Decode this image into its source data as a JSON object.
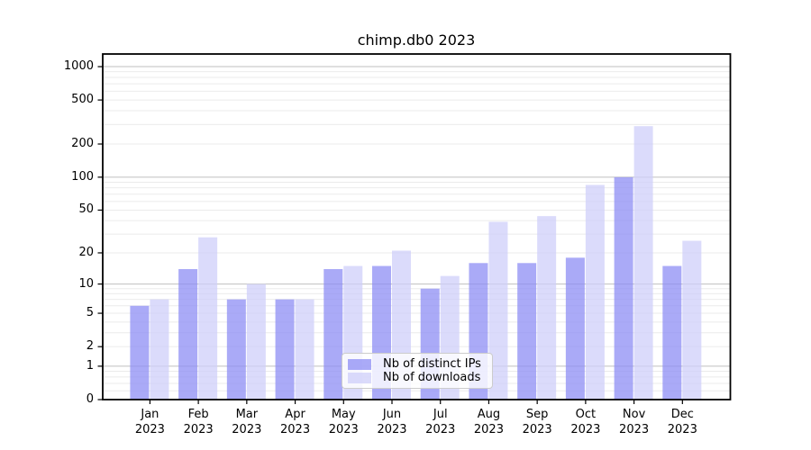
{
  "chart_data": {
    "type": "bar",
    "title": "chimp.db0 2023",
    "year": "2023",
    "categories": [
      "Jan",
      "Feb",
      "Mar",
      "Apr",
      "May",
      "Jun",
      "Jul",
      "Aug",
      "Sep",
      "Oct",
      "Nov",
      "Dec"
    ],
    "series": [
      {
        "name": "Nb of distinct IPs",
        "color": "#8e8ef4",
        "values": [
          6,
          14,
          7,
          7,
          14,
          15,
          9,
          16,
          16,
          18,
          100,
          15
        ]
      },
      {
        "name": "Nb of downloads",
        "color": "#cfcff9",
        "values": [
          7,
          28,
          10,
          7,
          15,
          21,
          12,
          39,
          44,
          85,
          290,
          26
        ]
      }
    ],
    "xlabel": "",
    "ylabel": "",
    "y_scale": "symlog (log10 of 1+value)",
    "y_ticks": [
      0,
      1,
      2,
      5,
      10,
      20,
      50,
      100,
      200,
      500,
      1000
    ],
    "ylim": [
      0,
      1300
    ],
    "grid": "on (major gray lines at powers of 10, faint minor lines)",
    "legend_position": "inside lower-center"
  },
  "colors": {
    "bar_distinct_ips_apparent": "#a8a8f8",
    "bar_downloads_apparent": "#d8d8fa",
    "grid_major": "#bfbfbf",
    "grid_minor": "#ebebeb",
    "axis": "#000000",
    "background": "#ffffff"
  }
}
